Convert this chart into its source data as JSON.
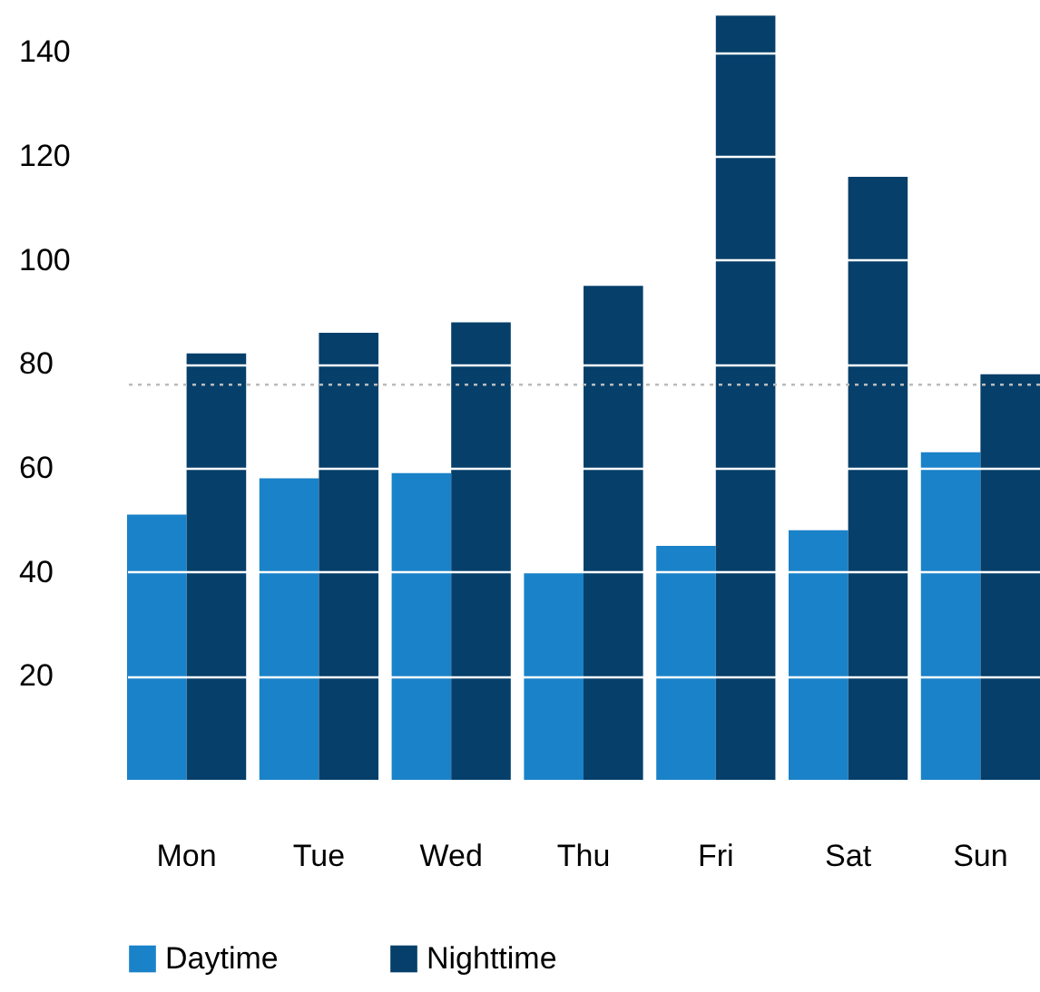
{
  "chart_data": {
    "type": "bar",
    "categories": [
      "Mon",
      "Tue",
      "Wed",
      "Thu",
      "Fri",
      "Sat",
      "Sun"
    ],
    "series": [
      {
        "name": "Daytime",
        "color": "#1a82c8",
        "values": [
          51,
          58,
          59,
          40,
          45,
          48,
          63
        ]
      },
      {
        "name": "Nighttime",
        "color": "#053f6a",
        "values": [
          82,
          86,
          88,
          95,
          147,
          116,
          78
        ]
      }
    ],
    "ylim": [
      0,
      150
    ],
    "yticks": [
      20,
      40,
      60,
      80,
      100,
      120,
      140
    ],
    "grid": "y",
    "legend": "bottom",
    "ref_lines": [
      {
        "axis": "y",
        "value": 76,
        "color": "#bbbbbb",
        "line_style": "dotted"
      }
    ]
  }
}
